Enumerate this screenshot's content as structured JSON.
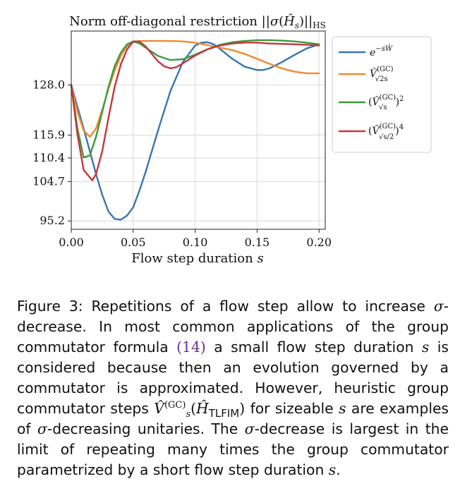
{
  "chart_data": {
    "type": "line",
    "title": "Norm off-diagonal restriction ||σ(Ĥ_s)||_HS",
    "xlabel": "Flow step duration s",
    "ylabel": "",
    "xlim": [
      0.0,
      0.205
    ],
    "ylim": [
      93.2,
      141.0
    ],
    "xticks": [
      0.0,
      0.05,
      0.1,
      0.15,
      0.2
    ],
    "xtick_labels": [
      "0.00",
      "0.05",
      "0.10",
      "0.15",
      "0.20"
    ],
    "yticks": [
      95.2,
      104.7,
      110.4,
      115.9,
      128.0
    ],
    "ytick_labels": [
      "95.2",
      "104.7",
      "110.4",
      "115.9",
      "128.0"
    ],
    "grid": true,
    "legend_position": "right-outside-top",
    "series": [
      {
        "name": "e^{-sŴ}",
        "color": "#3a75b0",
        "x": [
          0.0,
          0.01,
          0.02,
          0.025,
          0.03,
          0.035,
          0.04,
          0.045,
          0.05,
          0.055,
          0.06,
          0.07,
          0.08,
          0.09,
          0.1,
          0.105,
          0.11,
          0.115,
          0.12,
          0.13,
          0.14,
          0.15,
          0.155,
          0.16,
          0.17,
          0.18,
          0.19,
          0.2
        ],
        "y": [
          128.0,
          117.5,
          106.5,
          101.5,
          97.5,
          95.7,
          95.5,
          96.5,
          98.5,
          102.5,
          107.0,
          117.0,
          126.5,
          133.5,
          137.5,
          138.2,
          138.3,
          137.8,
          136.7,
          134.3,
          132.4,
          131.6,
          131.6,
          132.0,
          133.5,
          135.2,
          136.8,
          137.8
        ]
      },
      {
        "name": "V̂^(GC)_√2s",
        "color": "#ef8a2e",
        "x": [
          0.0,
          0.005,
          0.01,
          0.015,
          0.02,
          0.025,
          0.03,
          0.035,
          0.04,
          0.045,
          0.05,
          0.055,
          0.06,
          0.07,
          0.08,
          0.09,
          0.1,
          0.11,
          0.12,
          0.13,
          0.14,
          0.15,
          0.16,
          0.17,
          0.18,
          0.19,
          0.2
        ],
        "y": [
          128.0,
          121.5,
          117.0,
          115.5,
          117.5,
          122.0,
          127.0,
          131.5,
          135.0,
          137.3,
          138.3,
          138.6,
          138.6,
          138.6,
          138.6,
          138.5,
          138.2,
          137.6,
          137.0,
          136.4,
          135.5,
          134.3,
          133.1,
          132.0,
          131.2,
          130.8,
          130.8
        ]
      },
      {
        "name": "(V̂^(GC)_√s)^2",
        "color": "#3d9a3d",
        "x": [
          0.0,
          0.005,
          0.01,
          0.015,
          0.02,
          0.025,
          0.03,
          0.035,
          0.04,
          0.045,
          0.05,
          0.055,
          0.06,
          0.07,
          0.08,
          0.09,
          0.1,
          0.11,
          0.12,
          0.13,
          0.14,
          0.15,
          0.16,
          0.17,
          0.18,
          0.19,
          0.2
        ],
        "y": [
          128.0,
          117.5,
          110.5,
          111.0,
          115.5,
          121.5,
          127.5,
          132.5,
          135.8,
          137.8,
          138.5,
          138.0,
          137.0,
          135.0,
          134.0,
          134.2,
          135.3,
          136.6,
          137.7,
          138.3,
          138.6,
          138.8,
          138.8,
          138.7,
          138.5,
          138.2,
          137.8
        ]
      },
      {
        "name": "(V̂^(GC)_√(s/2))^4",
        "color": "#c8353a",
        "x": [
          0.0,
          0.005,
          0.01,
          0.017,
          0.02,
          0.025,
          0.03,
          0.035,
          0.04,
          0.045,
          0.05,
          0.055,
          0.06,
          0.065,
          0.07,
          0.075,
          0.08,
          0.085,
          0.09,
          0.1,
          0.11,
          0.12,
          0.13,
          0.14,
          0.15,
          0.16,
          0.17,
          0.18,
          0.19,
          0.2
        ],
        "y": [
          128.0,
          116.0,
          107.5,
          105.0,
          106.5,
          112.0,
          120.0,
          127.5,
          133.0,
          136.5,
          138.5,
          138.5,
          137.3,
          135.5,
          133.7,
          132.5,
          132.0,
          132.3,
          133.2,
          135.1,
          136.6,
          137.5,
          138.0,
          138.2,
          138.2,
          138.0,
          137.9,
          137.8,
          137.7,
          137.5
        ]
      }
    ]
  },
  "caption": {
    "label": "Figure 3:",
    "p1": "Repetitions of a flow step allow to increase ",
    "sigma1": "σ",
    "p2": "-decrease. In most common applications of the group commutator formula ",
    "ref": "(14)",
    "p3": " a small flow step duration ",
    "s1": "s",
    "p4": " is considered because then an evolution governed by a commutator is approximated. However, heuristic group commutator steps ",
    "vhat": "V̂",
    "sup_gc": "(GC)",
    "sub_s": "s",
    "lparen": "(",
    "hhat": "Ĥ",
    "tlfim": "TLFIM",
    "rparen": ")",
    "p5": " for sizeable ",
    "s2": "s",
    "p6": " are examples of ",
    "sigma2": "σ",
    "p7": "-decreasing unitaries. The ",
    "sigma3": "σ",
    "p8": "-decrease is largest in the limit of repeating many times the group commutator parametrized by a short flow step duration ",
    "s3": "s",
    "p9": "."
  }
}
